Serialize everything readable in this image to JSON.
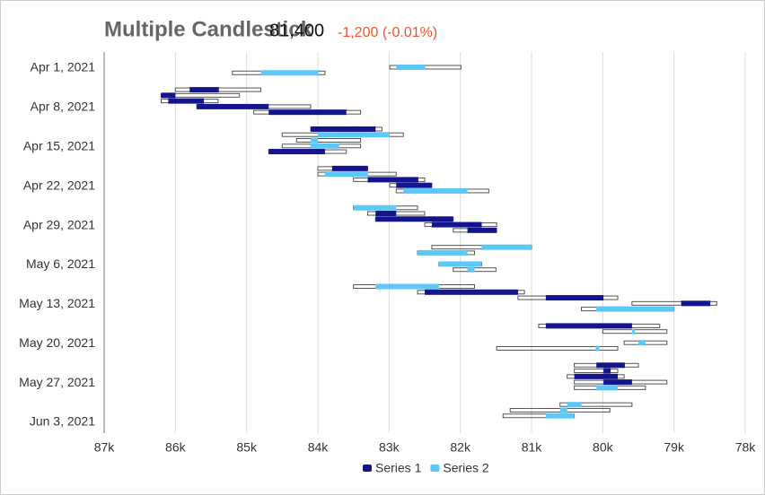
{
  "chart_data": {
    "type": "candlestick",
    "orientation": "horizontal",
    "title": "Multiple Candlestick",
    "price": "81,400",
    "change": "-1,200 (-0.01%)",
    "xlim": [
      87000,
      78000
    ],
    "xticks": [
      {
        "value": 87000,
        "label": "87k"
      },
      {
        "value": 86000,
        "label": "86k"
      },
      {
        "value": 85000,
        "label": "85k"
      },
      {
        "value": 84000,
        "label": "84k"
      },
      {
        "value": 83000,
        "label": "83k"
      },
      {
        "value": 82000,
        "label": "82k"
      },
      {
        "value": 81000,
        "label": "81k"
      },
      {
        "value": 80000,
        "label": "80k"
      },
      {
        "value": 79000,
        "label": "79k"
      },
      {
        "value": 78000,
        "label": "78k"
      }
    ],
    "ylim": [
      "2021-04-01",
      "2021-06-03"
    ],
    "yticks": [
      {
        "value": "2021-04-01",
        "label": "Apr 1, 2021"
      },
      {
        "value": "2021-04-08",
        "label": "Apr 8, 2021"
      },
      {
        "value": "2021-04-15",
        "label": "Apr 15, 2021"
      },
      {
        "value": "2021-04-22",
        "label": "Apr 22, 2021"
      },
      {
        "value": "2021-04-29",
        "label": "Apr 29, 2021"
      },
      {
        "value": "2021-05-06",
        "label": "May 6, 2021"
      },
      {
        "value": "2021-05-13",
        "label": "May 13, 2021"
      },
      {
        "value": "2021-05-20",
        "label": "May 20, 2021"
      },
      {
        "value": "2021-05-27",
        "label": "May 27, 2021"
      },
      {
        "value": "2021-06-03",
        "label": "Jun 3, 2021"
      }
    ],
    "grid": true,
    "series": [
      {
        "name": "Series 1",
        "color": "#14148c",
        "x": [
          "2021-04-05",
          "2021-04-06",
          "2021-04-07",
          "2021-04-08",
          "2021-04-09",
          "2021-04-12",
          "2021-04-16",
          "2021-04-19",
          "2021-04-21",
          "2021-04-22",
          "2021-04-27",
          "2021-04-28",
          "2021-04-29",
          "2021-04-30",
          "2021-05-11",
          "2021-05-12",
          "2021-05-13",
          "2021-05-17",
          "2021-05-24",
          "2021-05-25",
          "2021-05-26",
          "2021-05-27"
        ],
        "open": [
          85800,
          86200,
          86100,
          85700,
          84690,
          84100,
          84690,
          83800,
          83300,
          82900,
          83190,
          83190,
          82400,
          81900,
          82500,
          80800,
          78900,
          80800,
          80090,
          79990,
          80400,
          79990
        ],
        "high": [
          86000,
          86200,
          86200,
          85700,
          84900,
          84100,
          84690,
          84000,
          83500,
          82990,
          83300,
          83190,
          82500,
          82100,
          82600,
          81190,
          79590,
          80900,
          80400,
          80400,
          80500,
          80400
        ],
        "low": [
          84800,
          85100,
          85400,
          84100,
          83400,
          83100,
          83600,
          83300,
          82500,
          82400,
          82500,
          82100,
          81490,
          81490,
          81100,
          79790,
          78400,
          79200,
          79500,
          79790,
          79700,
          79100
        ],
        "close": [
          85390,
          86000,
          85600,
          84690,
          83600,
          83190,
          83900,
          83300,
          82590,
          82400,
          82900,
          82100,
          81700,
          81490,
          81190,
          79990,
          78490,
          79590,
          79690,
          79890,
          79790,
          79590
        ]
      },
      {
        "name": "Series 2",
        "color": "#5cc8f8",
        "x": [
          "2021-04-01",
          "2021-04-02",
          "2021-04-13",
          "2021-04-14",
          "2021-04-15",
          "2021-04-20",
          "2021-04-23",
          "2021-04-26",
          "2021-05-03",
          "2021-05-04",
          "2021-05-06",
          "2021-05-07",
          "2021-05-10",
          "2021-05-14",
          "2021-05-18",
          "2021-05-20",
          "2021-05-21",
          "2021-05-28",
          "2021-05-31",
          "2021-06-01",
          "2021-06-02"
        ],
        "open": [
          82900,
          84800,
          84000,
          84100,
          84100,
          83900,
          82800,
          83500,
          81700,
          82600,
          82300,
          81900,
          83190,
          80090,
          79590,
          79500,
          80100,
          80090,
          80500,
          80600,
          80800
        ],
        "high": [
          82990,
          85200,
          84500,
          84300,
          84500,
          84000,
          82900,
          83500,
          82400,
          82600,
          82300,
          82100,
          83500,
          80300,
          80000,
          79700,
          81490,
          80400,
          80600,
          81300,
          81400
        ],
        "low": [
          81990,
          83900,
          82800,
          83400,
          83400,
          82900,
          81600,
          82600,
          81000,
          81800,
          81700,
          81500,
          81800,
          79000,
          79100,
          79100,
          79790,
          79400,
          79590,
          79900,
          80400
        ],
        "close": [
          82490,
          83990,
          82990,
          84000,
          83700,
          83300,
          81900,
          82900,
          81000,
          81900,
          81700,
          81800,
          82300,
          79000,
          79550,
          79400,
          80050,
          79790,
          80300,
          80500,
          80400
        ]
      }
    ]
  }
}
